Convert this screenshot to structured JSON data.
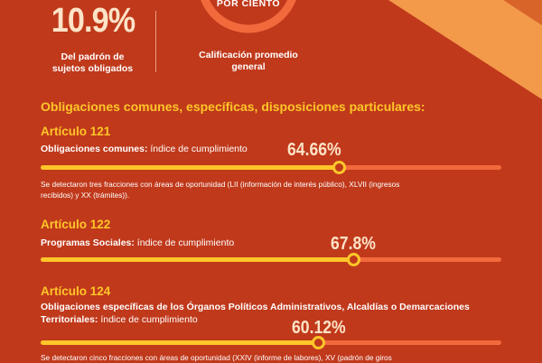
{
  "colors": {
    "background": "#c0391b",
    "accent_yellow": "#ffc629",
    "bar_track": "#f26a3c",
    "corner": "#f39a4a"
  },
  "stat": {
    "value": "10.9%",
    "label_line1": "Del padrón de",
    "label_line2": "sujetos obligados"
  },
  "gauge": {
    "text": "POR CIENTO",
    "label_line1": "Calificación promedio",
    "label_line2": "general"
  },
  "section_title": "Obligaciones comunes, específicas, disposiciones particulares:",
  "articles": [
    {
      "title": "Artículo 121",
      "desc_bold": "Obligaciones comunes:",
      "desc_rest": " índice de cumplimiento",
      "percent_text": "64.66%",
      "fraction": 0.6466,
      "note_line1": "Se detectaron tres fracciones con áreas de oportunidad (LII (información de interés público), XLVII (ingresos",
      "note_line2": "recibidos) y XX (trámites))."
    },
    {
      "title": "Artículo 122",
      "desc_bold": "Programas Sociales:",
      "desc_rest": " índice de cumplimiento",
      "percent_text": "67.8%",
      "fraction": 0.678
    },
    {
      "title": "Artículo 124",
      "desc_bold_line1": "Obligaciones específicas de los Órganos Políticos Administrativos, Alcaldías o Demarcaciones",
      "desc_bold_line2": "Territoriales:",
      "desc_rest": " índice de cumplimiento",
      "percent_text": "60.12%",
      "fraction": 0.6012,
      "note_line1": "Se detectaron cinco fracciones con áreas de oportunidad (XXIV (informe de labores), XV (padrón de giros"
    }
  ]
}
